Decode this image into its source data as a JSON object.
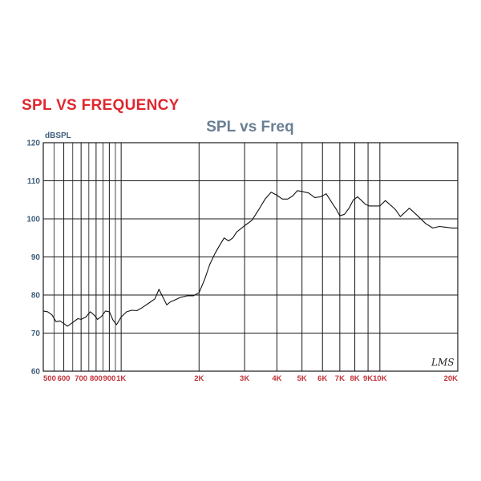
{
  "page": {
    "heading": "SPL VS FREQUENCY",
    "heading_color": "#e0262e"
  },
  "chart_data": {
    "type": "line",
    "title": "SPL vs Freq",
    "ylabel": "dBSPL",
    "xlabel": "",
    "x_scale": "log",
    "xlim": [
      500,
      20000
    ],
    "ylim": [
      60,
      120
    ],
    "grid": true,
    "y_ticks": [
      60,
      70,
      80,
      90,
      100,
      110,
      120
    ],
    "x_ticks": [
      {
        "value": 500,
        "label": "500"
      },
      {
        "value": 600,
        "label": "600"
      },
      {
        "value": 700,
        "label": "700"
      },
      {
        "value": 800,
        "label": "800"
      },
      {
        "value": 900,
        "label": "900"
      },
      {
        "value": 1000,
        "label": "1K"
      },
      {
        "value": 2000,
        "label": "2K"
      },
      {
        "value": 3000,
        "label": "3K"
      },
      {
        "value": 4000,
        "label": "4K"
      },
      {
        "value": 5000,
        "label": "5K"
      },
      {
        "value": 6000,
        "label": "6K"
      },
      {
        "value": 7000,
        "label": "7K"
      },
      {
        "value": 8000,
        "label": "8K"
      },
      {
        "value": 9000,
        "label": "9K"
      },
      {
        "value": 10000,
        "label": "10K"
      },
      {
        "value": 20000,
        "label": "20K"
      }
    ],
    "x_minor_gridlines": [
      550,
      650,
      750,
      850,
      950
    ],
    "watermark": "LMS",
    "colors": {
      "line": "#111111",
      "grid": "#1a1a1a",
      "y_ticks": "#3f5e7c",
      "x_ticks": "#c23238",
      "title": "#6a7f93"
    },
    "series": [
      {
        "x": [
          500,
          520,
          540,
          560,
          580,
          600,
          620,
          650,
          680,
          700,
          730,
          760,
          790,
          810,
          840,
          870,
          900,
          930,
          960,
          1000,
          1050,
          1100,
          1150,
          1200,
          1300,
          1350,
          1400,
          1500,
          1550,
          1600,
          1700,
          1800,
          1900,
          2000,
          2100,
          2200,
          2300,
          2400,
          2500,
          2600,
          2700,
          2800,
          2900,
          3000,
          3200,
          3400,
          3600,
          3800,
          4000,
          4200,
          4400,
          4600,
          4800,
          5000,
          5300,
          5600,
          5900,
          6200,
          6500,
          6800,
          7000,
          7300,
          7600,
          7900,
          8200,
          8500,
          8800,
          9100,
          9500,
          10000,
          10500,
          11000,
          11500,
          12000,
          13000,
          14000,
          15000,
          16000,
          17000,
          18000,
          19000,
          20000
        ],
        "y": [
          75.8,
          75.6,
          74.8,
          73.0,
          73.2,
          72.5,
          71.8,
          72.8,
          73.8,
          73.6,
          74.2,
          75.6,
          74.6,
          73.6,
          74.4,
          75.8,
          75.6,
          73.4,
          72.2,
          74.2,
          75.6,
          76.0,
          75.9,
          76.6,
          78.2,
          79.0,
          81.5,
          77.4,
          78.2,
          78.6,
          79.4,
          79.8,
          79.8,
          80.6,
          84.0,
          88.0,
          90.8,
          93.0,
          95.0,
          94.2,
          95.0,
          96.6,
          97.4,
          98.2,
          99.6,
          102.4,
          105.2,
          107.0,
          106.2,
          105.2,
          105.2,
          106.0,
          107.4,
          107.2,
          106.8,
          105.6,
          105.8,
          106.6,
          104.4,
          102.4,
          100.8,
          101.2,
          102.8,
          105.0,
          105.8,
          104.8,
          103.8,
          103.4,
          103.4,
          103.4,
          104.8,
          103.6,
          102.4,
          100.6,
          102.8,
          100.8,
          98.8,
          97.6,
          98.0,
          97.8,
          97.6,
          97.6
        ]
      }
    ]
  }
}
